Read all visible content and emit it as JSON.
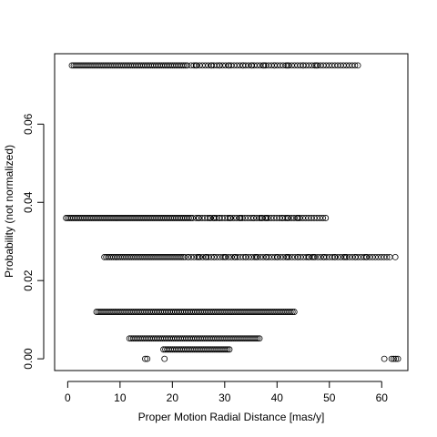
{
  "chart_data": {
    "type": "scatter",
    "title": "",
    "xlabel": "Proper Motion Radial Distance [mas/y]",
    "ylabel": "Probability (not normalized)",
    "xlim": [
      -2.5,
      65
    ],
    "ylim": [
      -0.003,
      0.078
    ],
    "xticks": [
      0,
      10,
      20,
      30,
      40,
      50,
      60
    ],
    "yticks": [
      0.0,
      0.02,
      0.04,
      0.06
    ],
    "xtick_labels": [
      "0",
      "10",
      "20",
      "30",
      "40",
      "50",
      "60"
    ],
    "ytick_labels": [
      "0.00",
      "0.02",
      "0.04",
      "0.06"
    ],
    "grid": false,
    "legend": "none",
    "marker": "open-circle",
    "series": [
      {
        "values_summary": "dense horizontal band",
        "y": 0.075,
        "x_range": [
          0.8,
          55.5
        ],
        "dense_until": 23.0,
        "sparse_x": [
          24.5,
          27.5,
          29.0,
          30.8,
          33.5,
          35.2,
          37.5,
          39.5,
          42.0,
          45.0,
          47.5
        ]
      },
      {
        "values_summary": "dense horizontal band",
        "y": 0.036,
        "x_range": [
          -0.3,
          49.8
        ],
        "dense_until": 24.0,
        "sparse_x": [
          25.0,
          27.2,
          28.0,
          29.0,
          31.0,
          33.0,
          35.5,
          37.0,
          38.0,
          41.0,
          42.0,
          44.0
        ]
      },
      {
        "values_summary": "dense horizontal band",
        "y": 0.026,
        "x_range": [
          7.0,
          62.0
        ],
        "dense_until": 22.5,
        "sparse_x": [
          23.0,
          25.0,
          26.5,
          28.0,
          30.0,
          32.0,
          34.0,
          36.0,
          38.0,
          40.0,
          42.0,
          44.0,
          46.0,
          47.0,
          49.0,
          51.0,
          53.0,
          55.0,
          57.0
        ],
        "extra_points": [
          62.6
        ]
      },
      {
        "values_summary": "dense horizontal band",
        "y": 0.012,
        "x_range": [
          5.5,
          43.5
        ],
        "dense_until": 43.5,
        "sparse_x": []
      },
      {
        "values_summary": "dense horizontal band",
        "y": 0.0052,
        "x_range": [
          11.8,
          37.0
        ],
        "dense_until": 37.0,
        "sparse_x": []
      },
      {
        "values_summary": "dense horizontal band",
        "y": 0.0024,
        "x_range": [
          18.3,
          31.2
        ],
        "dense_until": 31.2,
        "sparse_x": []
      },
      {
        "values_summary": "isolated points",
        "y": 0.0,
        "points_x": [
          14.8,
          15.2,
          18.5,
          60.5,
          61.9,
          62.3,
          62.7,
          63.1
        ]
      }
    ]
  },
  "colors": {
    "axis": "#000000",
    "marker_stroke": "#000000",
    "background": "#ffffff"
  }
}
